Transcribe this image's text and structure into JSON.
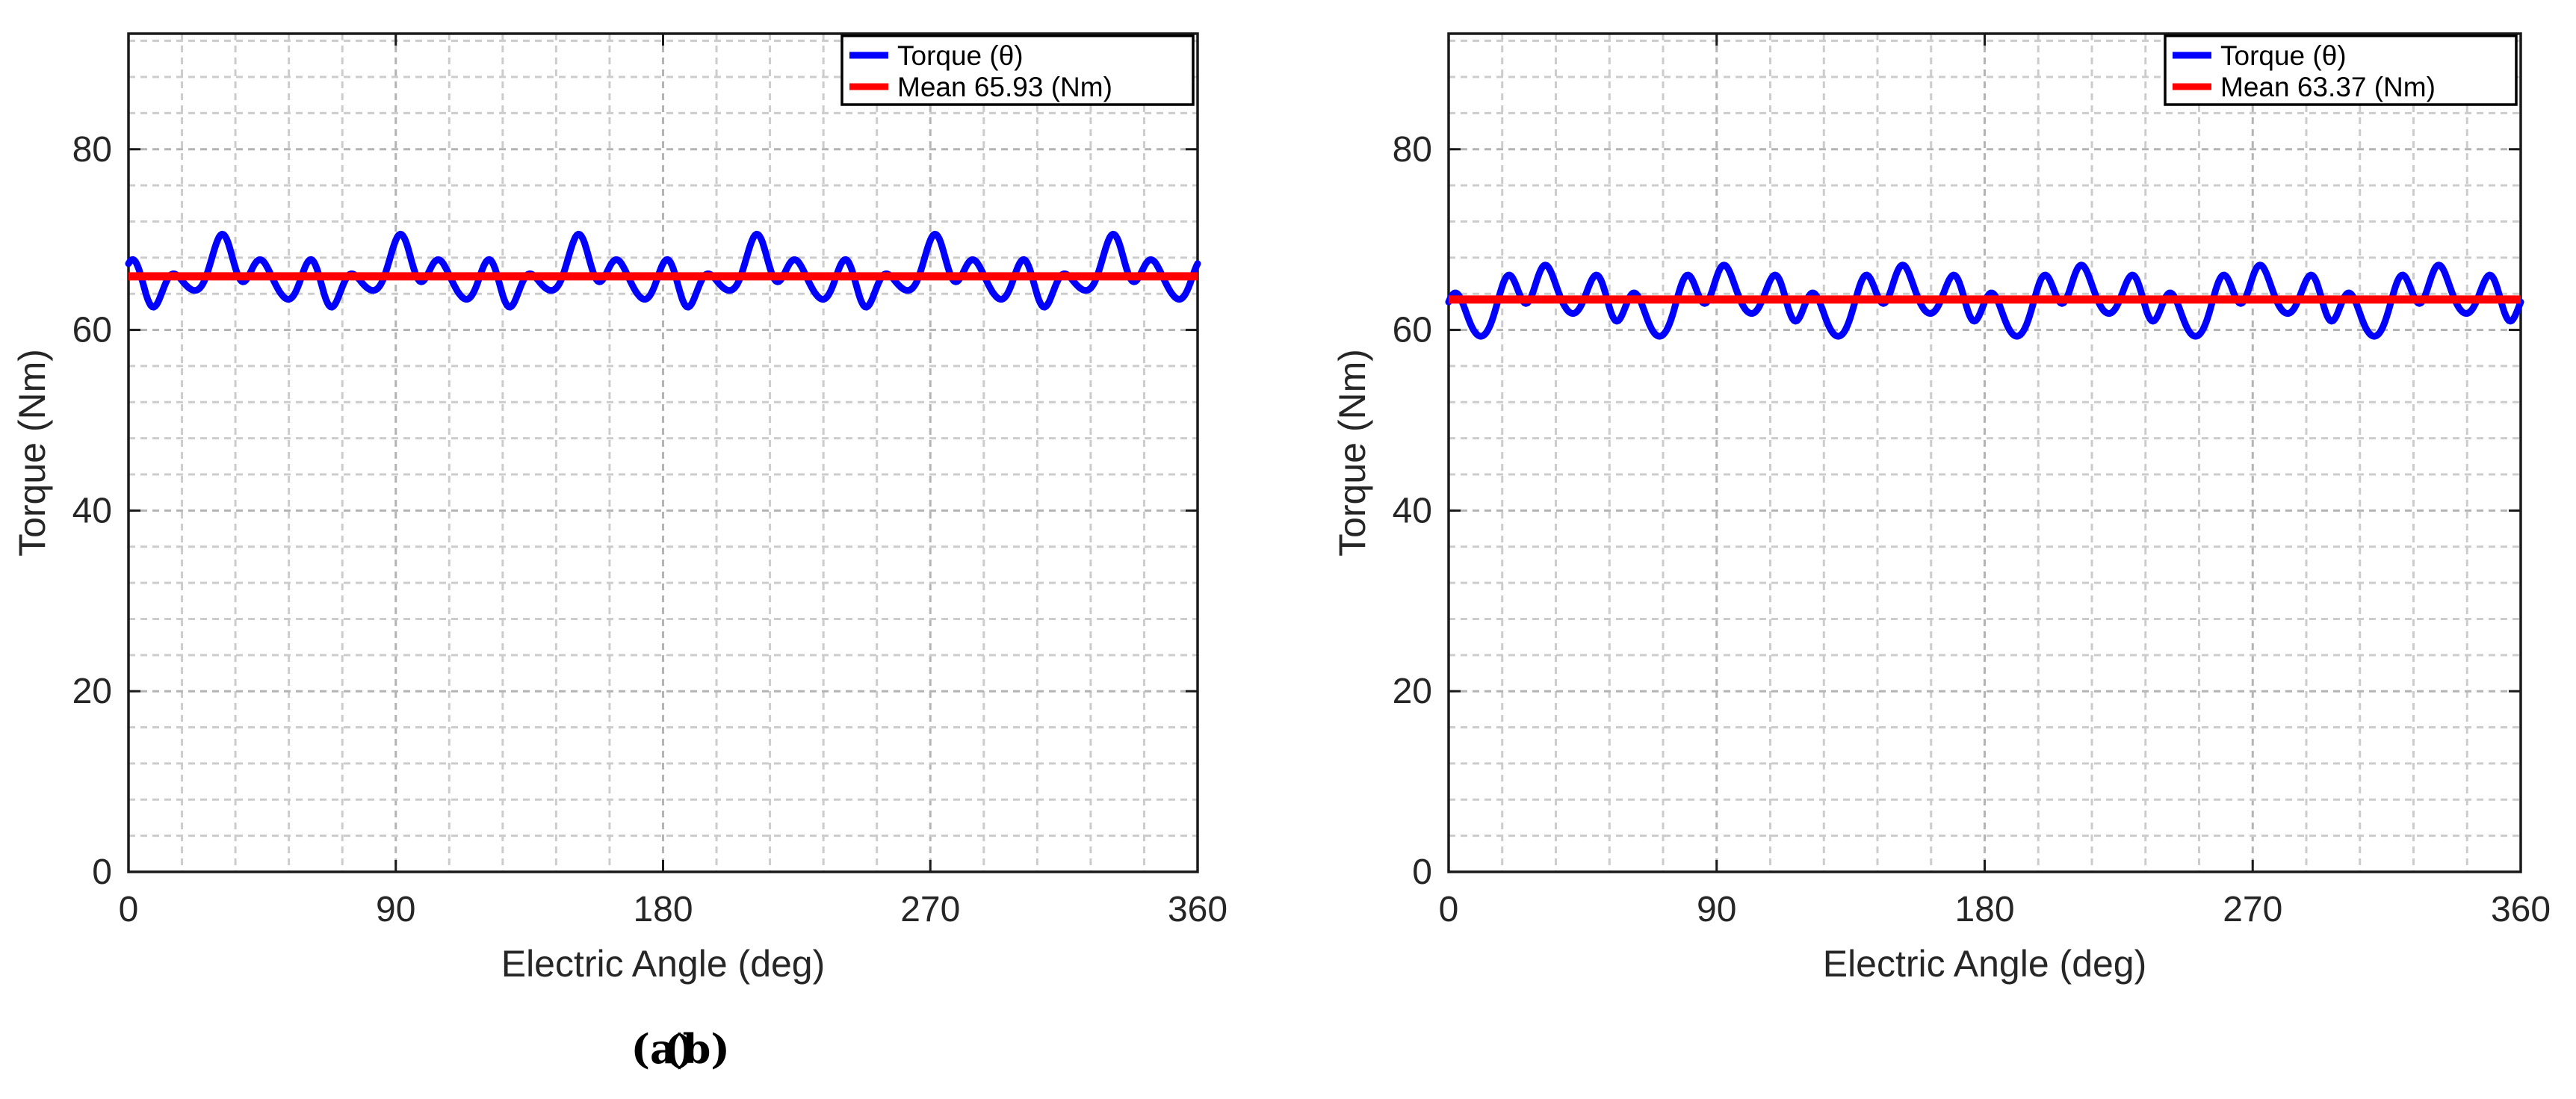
{
  "figure": {
    "description": "Two side-by-side torque ripple plots versus electric angle",
    "captions": {
      "a": "(a)",
      "b": "(b)"
    }
  },
  "colors": {
    "torque_line": "#0000FF",
    "mean_line": "#FF0000",
    "grid_minor": "#CCCCCC",
    "grid_major": "#B4B4B4",
    "axis": "#1A1A1A",
    "text": "#262626",
    "legend_border": "#000000",
    "legend_background": "#FFFFFF"
  },
  "chart_data": [
    {
      "id": "a",
      "type": "line",
      "caption": "(a)",
      "title": "",
      "xlabel": "Electric Angle (deg)",
      "ylabel": "Torque (Nm)",
      "xlim": [
        0,
        360
      ],
      "ylim": [
        0,
        92.8
      ],
      "xticks": [
        0,
        90,
        180,
        270,
        360
      ],
      "yticks": [
        0,
        20,
        40,
        60,
        80
      ],
      "x_minor_step_deg": 18,
      "y_minor_step": 4,
      "grid": "on-dashed",
      "legend_position": "top-right",
      "legend": [
        {
          "label": "Torque (θ)",
          "color": "#0000FF"
        },
        {
          "label": "Mean 65.93 (Nm)",
          "color": "#FF0000"
        }
      ],
      "mean_value_nm": 65.93,
      "ripple": {
        "min_nm": 61.0,
        "max_nm": 71.5
      },
      "series": [
        {
          "name": "Torque (θ)",
          "kind": "harmonic-sum",
          "color": "#0000FF",
          "base": 65.93,
          "sample_step_deg": 0.5,
          "harmonics": [
            {
              "order": 24,
              "amp": 2.0,
              "phase_rad": 1.2
            },
            {
              "order": 6,
              "amp": 1.5,
              "phase_rad": -2.09
            },
            {
              "order": 12,
              "amp": 1.0,
              "phase_rad": 1.0
            },
            {
              "order": 36,
              "amp": 0.45,
              "phase_rad": 0.0
            }
          ]
        },
        {
          "name": "Mean 65.93 (Nm)",
          "kind": "constant",
          "color": "#FF0000",
          "value": 65.93
        }
      ]
    },
    {
      "id": "b",
      "type": "line",
      "caption": "(b)",
      "title": "",
      "xlabel": "Electric Angle (deg)",
      "ylabel": "Torque (Nm)",
      "xlim": [
        0,
        360
      ],
      "ylim": [
        0,
        92.8
      ],
      "xticks": [
        0,
        90,
        180,
        270,
        360
      ],
      "yticks": [
        0,
        20,
        40,
        60,
        80
      ],
      "x_minor_step_deg": 18,
      "y_minor_step": 4,
      "grid": "on-dashed",
      "legend_position": "top-right",
      "legend": [
        {
          "label": "Torque (θ)",
          "color": "#0000FF"
        },
        {
          "label": "Mean 63.37 (Nm)",
          "color": "#FF0000"
        }
      ],
      "mean_value_nm": 63.37,
      "ripple": {
        "min_nm": 58.9,
        "max_nm": 69.7
      },
      "series": [
        {
          "name": "Torque (θ)",
          "kind": "harmonic-sum",
          "color": "#0000FF",
          "base": 63.37,
          "sample_step_deg": 0.5,
          "harmonics": [
            {
              "order": 24,
              "amp": 2.1,
              "phase_rad": 0.0
            },
            {
              "order": 6,
              "amp": 1.6,
              "phase_rad": -2.09
            },
            {
              "order": 12,
              "amp": 1.2,
              "phase_rad": 2.5
            },
            {
              "order": 36,
              "amp": 0.5,
              "phase_rad": 0.9
            }
          ]
        },
        {
          "name": "Mean 63.37 (Nm)",
          "kind": "constant",
          "color": "#FF0000",
          "value": 63.37
        }
      ]
    }
  ]
}
